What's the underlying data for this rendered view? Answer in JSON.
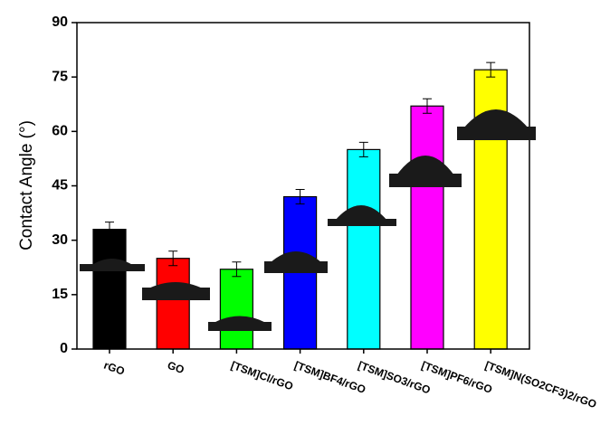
{
  "chart_data": {
    "type": "bar",
    "y_label": "Contact Angle (°)",
    "categories": [
      "rGO",
      "GO",
      "[TSM]Cl/rGO",
      "[TSM]BF4/rGO",
      "[TSM]SO3/rGO",
      "[TSM]PF6/rGO",
      "[TSM]N(SO2CF3)2/rGO"
    ],
    "values": [
      33,
      25,
      22,
      42,
      55,
      67,
      77
    ],
    "errors": [
      2,
      2,
      2,
      2,
      2,
      2,
      2
    ],
    "colors": [
      "#000000",
      "#ff0000",
      "#00ff00",
      "#0000ff",
      "#00ffff",
      "#ff00ff",
      "#ffff00"
    ],
    "ylim": [
      0,
      90
    ],
    "yticks": [
      0,
      15,
      30,
      45,
      60,
      75,
      90
    ]
  }
}
